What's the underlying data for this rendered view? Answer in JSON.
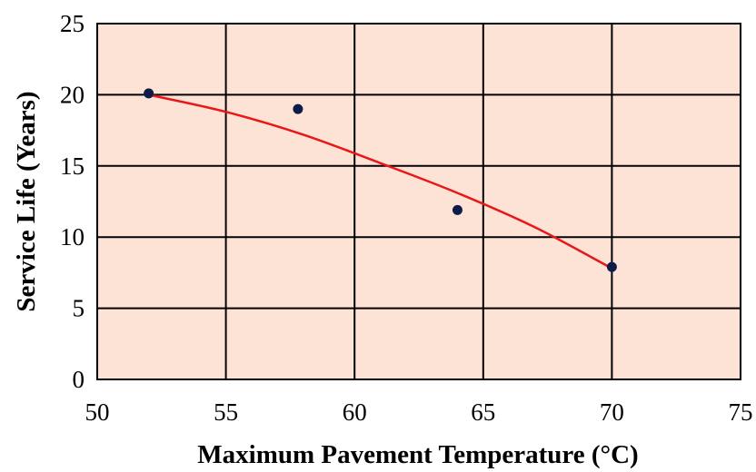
{
  "colors": {
    "plot_background": "#fde3d5",
    "grid": "#000000",
    "marker": "#0d1a4a",
    "trend_line": "#e81818"
  },
  "chart_data": {
    "type": "scatter",
    "xlabel": "Maximum Pavement Temperature (°C)",
    "ylabel": "Service Life (Years)",
    "xlim": [
      50,
      75
    ],
    "ylim": [
      0,
      25
    ],
    "xticks": [
      50,
      55,
      60,
      65,
      70,
      75
    ],
    "yticks": [
      0,
      5,
      10,
      15,
      20,
      25
    ],
    "grid": true,
    "legend": "none",
    "points": [
      {
        "x": 52,
        "y": 20.1
      },
      {
        "x": 57.8,
        "y": 19
      },
      {
        "x": 64,
        "y": 11.9
      },
      {
        "x": 70,
        "y": 7.9
      }
    ],
    "trend_line": {
      "x": [
        52,
        55,
        58,
        61,
        64,
        67,
        70
      ],
      "y": [
        20,
        18.8,
        17.2,
        15.2,
        13.1,
        10.7,
        7.8
      ]
    }
  }
}
